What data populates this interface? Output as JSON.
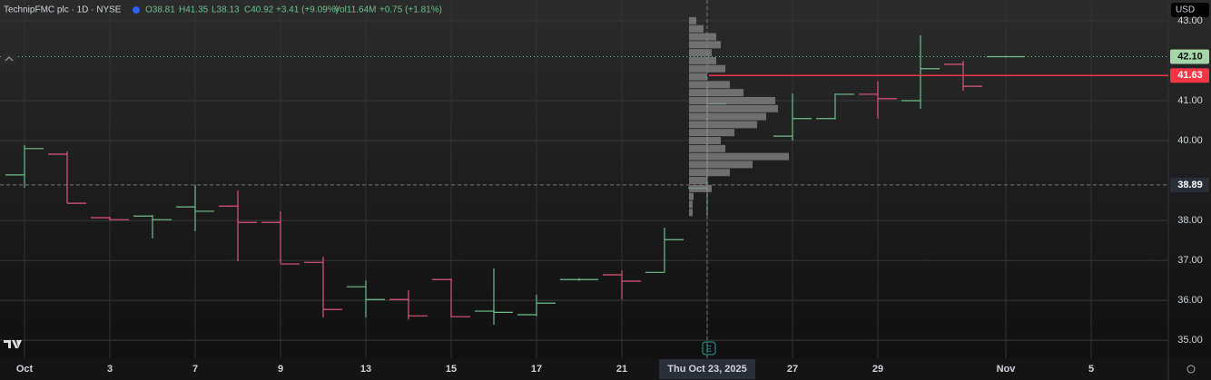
{
  "header": {
    "symbol": "TechnipFMC plc · 1D · NYSE",
    "open": "O38.81",
    "high": "H41.35",
    "low": "L38.13",
    "close": "C40.92",
    "change": "+3.41 (+9.09%)",
    "volume": "Vol11.64M",
    "volume_change": "+0.75 (+1.81%)",
    "currency": "USD"
  },
  "chart_data": {
    "type": "ohlc",
    "categories": [
      "Oct",
      null,
      "3",
      null,
      "7",
      null,
      "9",
      null,
      "13",
      null,
      "15",
      null,
      "17",
      null,
      "21",
      null,
      "Thu Oct 23, 2025",
      null,
      "27",
      null,
      "29",
      null,
      null,
      "Nov",
      null,
      "5"
    ],
    "series": [
      {
        "name": "open",
        "values": [
          39.14,
          39.66,
          38.07,
          38.11,
          38.34,
          38.36,
          37.95,
          36.95,
          36.34,
          36.02,
          36.52,
          35.73,
          35.64,
          36.52,
          36.64,
          36.7,
          38.81,
          null,
          40.11,
          40.55,
          41.16,
          41.0,
          41.91,
          42.1,
          null,
          null
        ]
      },
      {
        "name": "high",
        "values": [
          39.89,
          39.73,
          38.09,
          38.14,
          38.89,
          38.75,
          38.23,
          37.09,
          36.5,
          36.25,
          36.55,
          36.8,
          36.14,
          36.55,
          36.75,
          37.82,
          41.35,
          null,
          41.18,
          41.18,
          41.48,
          42.64,
          42.0,
          42.12,
          null,
          null
        ]
      },
      {
        "name": "low",
        "values": [
          38.82,
          38.43,
          38.0,
          37.55,
          37.73,
          36.98,
          36.93,
          35.57,
          35.57,
          35.52,
          35.57,
          35.39,
          35.6,
          36.49,
          36.02,
          36.7,
          38.13,
          null,
          40.0,
          40.53,
          40.55,
          40.8,
          41.25,
          42.08,
          null,
          null
        ]
      },
      {
        "name": "close",
        "values": [
          39.8,
          38.43,
          38.02,
          38.02,
          38.23,
          37.95,
          36.91,
          35.77,
          36.02,
          35.61,
          35.59,
          35.7,
          35.93,
          36.52,
          36.48,
          37.52,
          40.92,
          null,
          40.55,
          41.16,
          41.05,
          41.8,
          41.36,
          42.1,
          null,
          null
        ]
      }
    ],
    "up_color": "#6fbf8e",
    "down_color": "#e0567a",
    "ylim": [
      34.55,
      43.52
    ],
    "yticks": [
      {
        "value": 35,
        "label": "35.00"
      },
      {
        "value": 36,
        "label": "36.00"
      },
      {
        "value": 37,
        "label": "37.00"
      },
      {
        "value": 38,
        "label": "38.00"
      },
      {
        "value": 40,
        "label": "40.00"
      },
      {
        "value": 41,
        "label": "41.00"
      },
      {
        "value": 43,
        "label": "43.00"
      }
    ],
    "grid": true,
    "price_labels": [
      {
        "value": 42.1,
        "label": "42.10",
        "color": "#a5d6a7"
      },
      {
        "value": 41.63,
        "label": "41.63",
        "color": "#f23645"
      },
      {
        "value": 38.89,
        "label": "38.89",
        "color": "#2a2e39"
      }
    ],
    "volume_profile": {
      "prices": [
        43.0,
        42.8,
        42.6,
        42.4,
        42.2,
        42.0,
        41.8,
        41.6,
        41.4,
        41.2,
        41.0,
        40.8,
        40.6,
        40.4,
        40.2,
        40.0,
        39.8,
        39.6,
        39.4,
        39.2,
        39.0,
        38.8,
        38.6,
        38.4,
        38.2
      ],
      "volumes": [
        8,
        16,
        30,
        35,
        25,
        30,
        40,
        20,
        45,
        60,
        95,
        98,
        85,
        75,
        50,
        35,
        40,
        110,
        70,
        45,
        20,
        25,
        5,
        4,
        4
      ]
    }
  }
}
